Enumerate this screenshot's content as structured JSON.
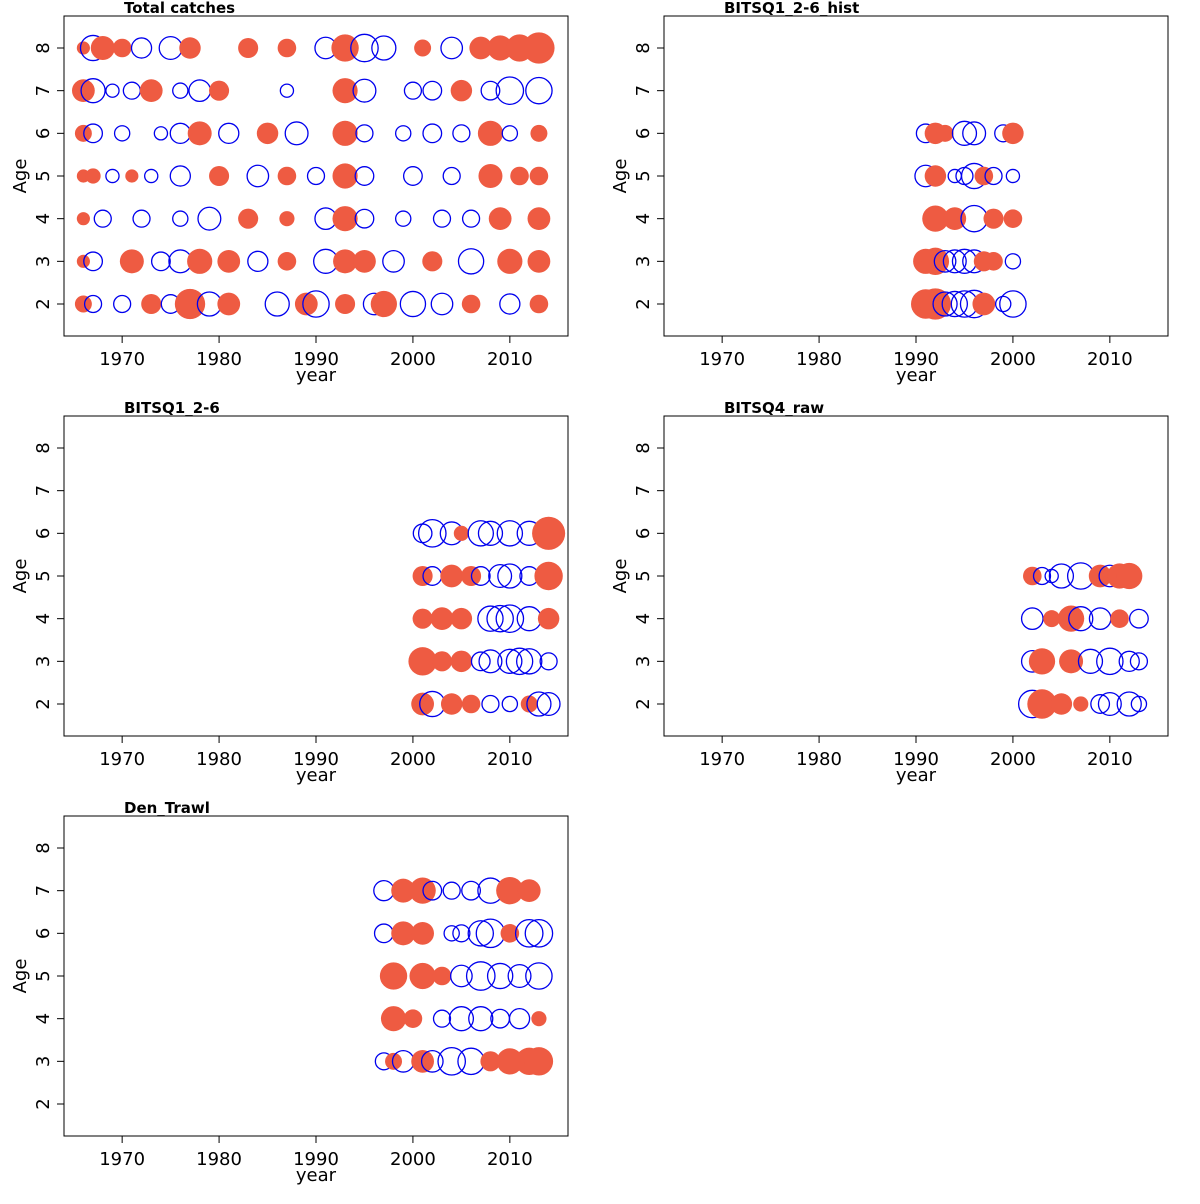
{
  "colors": {
    "positive": "#EE5B42",
    "negative": "#0000EE",
    "axes": "#000000"
  },
  "axes": {
    "xlabel": "year",
    "ylabel": "Age",
    "xticks": [
      1970,
      1980,
      1990,
      2000,
      2010
    ],
    "yticks": [
      2,
      3,
      4,
      5,
      6,
      7,
      8
    ],
    "xlim": [
      1964,
      2016
    ],
    "ylim": [
      1.25,
      8.75
    ]
  },
  "chart_data": [
    {
      "type": "scatter",
      "title": "Total catches",
      "year_range": [
        1966,
        2013
      ],
      "ages": [
        2,
        3,
        4,
        5,
        6,
        7,
        8
      ],
      "points": [
        [
          1966,
          8,
          0.3
        ],
        [
          1967,
          8,
          -1.1
        ],
        [
          1968,
          8,
          1.0
        ],
        [
          1970,
          8,
          0.6
        ],
        [
          1972,
          8,
          -0.7
        ],
        [
          1975,
          8,
          -0.9
        ],
        [
          1977,
          8,
          0.8
        ],
        [
          1983,
          8,
          0.7
        ],
        [
          1987,
          8,
          0.6
        ],
        [
          1991,
          8,
          -0.8
        ],
        [
          1993,
          8,
          1.3
        ],
        [
          1995,
          8,
          -1.3
        ],
        [
          1997,
          8,
          -1.0
        ],
        [
          2001,
          8,
          0.5
        ],
        [
          2004,
          8,
          -0.8
        ],
        [
          2007,
          8,
          0.9
        ],
        [
          2009,
          8,
          1.1
        ],
        [
          2011,
          8,
          1.3
        ],
        [
          2013,
          8,
          1.7
        ],
        [
          1966,
          7,
          0.9
        ],
        [
          1967,
          7,
          -1.0
        ],
        [
          1969,
          7,
          -0.3
        ],
        [
          1971,
          7,
          -0.5
        ],
        [
          1973,
          7,
          0.9
        ],
        [
          1976,
          7,
          -0.4
        ],
        [
          1978,
          7,
          -0.8
        ],
        [
          1980,
          7,
          0.7
        ],
        [
          1987,
          7,
          -0.3
        ],
        [
          1993,
          7,
          1.1
        ],
        [
          1995,
          7,
          -0.9
        ],
        [
          2000,
          7,
          -0.5
        ],
        [
          2002,
          7,
          -0.6
        ],
        [
          2005,
          7,
          0.8
        ],
        [
          2008,
          7,
          -0.6
        ],
        [
          2010,
          7,
          -1.3
        ],
        [
          2013,
          7,
          -1.2
        ],
        [
          1966,
          6,
          0.5
        ],
        [
          1967,
          6,
          -0.6
        ],
        [
          1970,
          6,
          -0.4
        ],
        [
          1974,
          6,
          -0.3
        ],
        [
          1976,
          6,
          -0.7
        ],
        [
          1978,
          6,
          1.0
        ],
        [
          1981,
          6,
          -0.7
        ],
        [
          1985,
          6,
          0.8
        ],
        [
          1988,
          6,
          -0.9
        ],
        [
          1993,
          6,
          1.1
        ],
        [
          1995,
          6,
          -0.5
        ],
        [
          1999,
          6,
          -0.4
        ],
        [
          2002,
          6,
          -0.6
        ],
        [
          2005,
          6,
          -0.5
        ],
        [
          2008,
          6,
          1.1
        ],
        [
          2010,
          6,
          -0.4
        ],
        [
          2013,
          6,
          0.5
        ],
        [
          1966,
          5,
          0.3
        ],
        [
          1967,
          5,
          0.4
        ],
        [
          1969,
          5,
          -0.3
        ],
        [
          1971,
          5,
          0.3
        ],
        [
          1973,
          5,
          -0.3
        ],
        [
          1976,
          5,
          -0.7
        ],
        [
          1980,
          5,
          0.7
        ],
        [
          1984,
          5,
          -0.8
        ],
        [
          1987,
          5,
          0.6
        ],
        [
          1990,
          5,
          -0.5
        ],
        [
          1993,
          5,
          1.1
        ],
        [
          1995,
          5,
          -0.6
        ],
        [
          2000,
          5,
          -0.6
        ],
        [
          2004,
          5,
          -0.5
        ],
        [
          2008,
          5,
          1.0
        ],
        [
          2011,
          5,
          0.6
        ],
        [
          2013,
          5,
          0.6
        ],
        [
          1966,
          4,
          0.3
        ],
        [
          1968,
          4,
          -0.5
        ],
        [
          1972,
          4,
          -0.5
        ],
        [
          1976,
          4,
          -0.4
        ],
        [
          1979,
          4,
          -0.9
        ],
        [
          1983,
          4,
          0.7
        ],
        [
          1987,
          4,
          0.4
        ],
        [
          1991,
          4,
          -0.8
        ],
        [
          1993,
          4,
          1.1
        ],
        [
          1995,
          4,
          -0.6
        ],
        [
          1999,
          4,
          -0.4
        ],
        [
          2003,
          4,
          -0.5
        ],
        [
          2006,
          4,
          -0.5
        ],
        [
          2009,
          4,
          0.9
        ],
        [
          2013,
          4,
          0.9
        ],
        [
          1966,
          3,
          0.3
        ],
        [
          1967,
          3,
          -0.6
        ],
        [
          1971,
          3,
          1.0
        ],
        [
          1974,
          3,
          -0.6
        ],
        [
          1976,
          3,
          -0.9
        ],
        [
          1978,
          3,
          1.1
        ],
        [
          1981,
          3,
          0.9
        ],
        [
          1984,
          3,
          -0.7
        ],
        [
          1987,
          3,
          0.6
        ],
        [
          1991,
          3,
          -1.0
        ],
        [
          1993,
          3,
          1.0
        ],
        [
          1995,
          3,
          0.9
        ],
        [
          1998,
          3,
          -0.8
        ],
        [
          2002,
          3,
          0.7
        ],
        [
          2006,
          3,
          -1.1
        ],
        [
          2010,
          3,
          1.1
        ],
        [
          2013,
          3,
          0.9
        ],
        [
          1966,
          2,
          0.5
        ],
        [
          1967,
          2,
          -0.5
        ],
        [
          1970,
          2,
          -0.5
        ],
        [
          1973,
          2,
          0.7
        ],
        [
          1975,
          2,
          -0.6
        ],
        [
          1977,
          2,
          1.6
        ],
        [
          1979,
          2,
          -1.0
        ],
        [
          1981,
          2,
          0.9
        ],
        [
          1986,
          2,
          -1.0
        ],
        [
          1989,
          2,
          0.9
        ],
        [
          1990,
          2,
          -1.2
        ],
        [
          1993,
          2,
          0.7
        ],
        [
          1996,
          2,
          -0.8
        ],
        [
          1997,
          2,
          1.2
        ],
        [
          2000,
          2,
          -1.1
        ],
        [
          2003,
          2,
          -0.8
        ],
        [
          2006,
          2,
          0.6
        ],
        [
          2010,
          2,
          -0.7
        ],
        [
          2013,
          2,
          0.6
        ]
      ]
    },
    {
      "type": "scatter",
      "title": "BITSQ1_2-6_hist",
      "year_range": [
        1991,
        2000
      ],
      "ages": [
        2,
        3,
        4,
        5,
        6
      ],
      "points": [
        [
          1991,
          6,
          -0.6
        ],
        [
          1992,
          6,
          0.8
        ],
        [
          1993,
          6,
          0.5
        ],
        [
          1995,
          6,
          -1.0
        ],
        [
          1996,
          6,
          -0.9
        ],
        [
          1999,
          6,
          -0.5
        ],
        [
          2000,
          6,
          0.8
        ],
        [
          1991,
          5,
          -0.8
        ],
        [
          1992,
          5,
          0.8
        ],
        [
          1994,
          5,
          -0.3
        ],
        [
          1995,
          5,
          -0.5
        ],
        [
          1996,
          5,
          -1.1
        ],
        [
          1997,
          5,
          0.6
        ],
        [
          1998,
          5,
          -0.5
        ],
        [
          2000,
          5,
          -0.3
        ],
        [
          1992,
          4,
          1.2
        ],
        [
          1994,
          4,
          0.9
        ],
        [
          1996,
          4,
          -1.2
        ],
        [
          1998,
          4,
          0.7
        ],
        [
          2000,
          4,
          0.6
        ],
        [
          1991,
          3,
          1.1
        ],
        [
          1992,
          3,
          1.3
        ],
        [
          1993,
          3,
          -0.8
        ],
        [
          1994,
          3,
          -0.9
        ],
        [
          1995,
          3,
          -1.0
        ],
        [
          1996,
          3,
          -0.9
        ],
        [
          1997,
          3,
          0.7
        ],
        [
          1998,
          3,
          0.6
        ],
        [
          2000,
          3,
          -0.4
        ],
        [
          1991,
          2,
          1.5
        ],
        [
          1992,
          2,
          1.7
        ],
        [
          1993,
          2,
          -1.0
        ],
        [
          1994,
          2,
          -1.1
        ],
        [
          1995,
          2,
          -1.2
        ],
        [
          1996,
          2,
          -1.3
        ],
        [
          1997,
          2,
          0.9
        ],
        [
          1999,
          2,
          -0.4
        ],
        [
          2000,
          2,
          -1.2
        ]
      ]
    },
    {
      "type": "scatter",
      "title": "BITSQ1_2-6",
      "year_range": [
        2001,
        2014
      ],
      "ages": [
        2,
        3,
        4,
        5,
        6
      ],
      "points": [
        [
          2001,
          6,
          -0.6
        ],
        [
          2002,
          6,
          -1.3
        ],
        [
          2004,
          6,
          -0.9
        ],
        [
          2005,
          6,
          0.4
        ],
        [
          2007,
          6,
          -1.1
        ],
        [
          2008,
          6,
          -1.0
        ],
        [
          2010,
          6,
          -1.1
        ],
        [
          2012,
          6,
          -1.0
        ],
        [
          2014,
          6,
          1.9
        ],
        [
          2001,
          5,
          0.7
        ],
        [
          2002,
          5,
          -0.6
        ],
        [
          2004,
          5,
          0.9
        ],
        [
          2006,
          5,
          0.7
        ],
        [
          2007,
          5,
          -0.6
        ],
        [
          2009,
          5,
          -0.9
        ],
        [
          2010,
          5,
          -1.0
        ],
        [
          2012,
          5,
          -0.6
        ],
        [
          2014,
          5,
          1.4
        ],
        [
          2001,
          4,
          0.7
        ],
        [
          2003,
          4,
          0.9
        ],
        [
          2005,
          4,
          0.8
        ],
        [
          2008,
          4,
          -1.1
        ],
        [
          2009,
          4,
          -1.2
        ],
        [
          2010,
          4,
          -1.3
        ],
        [
          2012,
          4,
          -1.0
        ],
        [
          2014,
          4,
          0.8
        ],
        [
          2001,
          3,
          1.4
        ],
        [
          2003,
          3,
          0.7
        ],
        [
          2005,
          3,
          0.8
        ],
        [
          2007,
          3,
          -0.6
        ],
        [
          2008,
          3,
          -0.9
        ],
        [
          2010,
          3,
          -1.0
        ],
        [
          2011,
          3,
          -1.2
        ],
        [
          2012,
          3,
          -1.1
        ],
        [
          2014,
          3,
          -0.5
        ],
        [
          2001,
          2,
          0.9
        ],
        [
          2002,
          2,
          -1.1
        ],
        [
          2004,
          2,
          0.8
        ],
        [
          2006,
          2,
          0.6
        ],
        [
          2008,
          2,
          -0.5
        ],
        [
          2010,
          2,
          -0.4
        ],
        [
          2012,
          2,
          0.5
        ],
        [
          2013,
          2,
          -1.0
        ],
        [
          2014,
          2,
          -0.9
        ]
      ]
    },
    {
      "type": "scatter",
      "title": "BITSQ4_raw",
      "year_range": [
        2002,
        2013
      ],
      "ages": [
        2,
        3,
        4,
        5
      ],
      "points": [
        [
          2002,
          5,
          0.6
        ],
        [
          2003,
          5,
          -0.5
        ],
        [
          2004,
          5,
          -0.3
        ],
        [
          2005,
          5,
          -1.0
        ],
        [
          2007,
          5,
          -1.2
        ],
        [
          2009,
          5,
          0.9
        ],
        [
          2010,
          5,
          -0.8
        ],
        [
          2011,
          5,
          1.1
        ],
        [
          2012,
          5,
          1.2
        ],
        [
          2002,
          4,
          -0.8
        ],
        [
          2004,
          4,
          0.5
        ],
        [
          2006,
          4,
          1.2
        ],
        [
          2007,
          4,
          -1.0
        ],
        [
          2009,
          4,
          -0.8
        ],
        [
          2011,
          4,
          0.6
        ],
        [
          2013,
          4,
          -0.6
        ],
        [
          2002,
          3,
          -0.8
        ],
        [
          2003,
          3,
          1.2
        ],
        [
          2006,
          3,
          1.0
        ],
        [
          2008,
          3,
          -1.0
        ],
        [
          2010,
          3,
          -1.2
        ],
        [
          2012,
          3,
          -0.7
        ],
        [
          2013,
          3,
          -0.5
        ],
        [
          2002,
          2,
          -1.3
        ],
        [
          2003,
          2,
          1.5
        ],
        [
          2005,
          2,
          0.8
        ],
        [
          2007,
          2,
          0.4
        ],
        [
          2009,
          2,
          -0.6
        ],
        [
          2010,
          2,
          -0.9
        ],
        [
          2012,
          2,
          -1.0
        ],
        [
          2013,
          2,
          -0.4
        ]
      ]
    },
    {
      "type": "scatter",
      "title": "Den_Trawl",
      "year_range": [
        1997,
        2013
      ],
      "ages": [
        3,
        4,
        5,
        6,
        7,
        8
      ],
      "points": [
        [
          1997,
          7,
          -0.7
        ],
        [
          1999,
          7,
          1.0
        ],
        [
          2001,
          7,
          1.2
        ],
        [
          2002,
          7,
          -0.6
        ],
        [
          2004,
          7,
          -0.5
        ],
        [
          2006,
          7,
          -0.6
        ],
        [
          2008,
          7,
          -1.1
        ],
        [
          2010,
          7,
          1.3
        ],
        [
          2012,
          7,
          0.9
        ],
        [
          1997,
          6,
          -0.6
        ],
        [
          1999,
          6,
          1.0
        ],
        [
          2001,
          6,
          0.9
        ],
        [
          2004,
          6,
          -0.4
        ],
        [
          2005,
          6,
          -0.5
        ],
        [
          2007,
          6,
          -1.1
        ],
        [
          2008,
          6,
          -1.4
        ],
        [
          2010,
          6,
          0.6
        ],
        [
          2012,
          6,
          -1.3
        ],
        [
          2013,
          6,
          -1.3
        ],
        [
          1998,
          5,
          1.3
        ],
        [
          2001,
          5,
          1.2
        ],
        [
          2003,
          5,
          0.6
        ],
        [
          2005,
          5,
          -0.8
        ],
        [
          2007,
          5,
          -1.4
        ],
        [
          2009,
          5,
          -1.1
        ],
        [
          2011,
          5,
          -0.9
        ],
        [
          2013,
          5,
          -1.2
        ],
        [
          1998,
          4,
          1.1
        ],
        [
          2000,
          4,
          0.6
        ],
        [
          2003,
          4,
          -0.5
        ],
        [
          2005,
          4,
          -1.0
        ],
        [
          2007,
          4,
          -1.0
        ],
        [
          2009,
          4,
          -0.6
        ],
        [
          2011,
          4,
          -0.7
        ],
        [
          2013,
          4,
          0.4
        ],
        [
          1997,
          3,
          -0.5
        ],
        [
          1998,
          3,
          0.5
        ],
        [
          1999,
          3,
          -0.8
        ],
        [
          2001,
          3,
          0.9
        ],
        [
          2002,
          3,
          -0.8
        ],
        [
          2004,
          3,
          -1.3
        ],
        [
          2006,
          3,
          -1.2
        ],
        [
          2008,
          3,
          0.7
        ],
        [
          2010,
          3,
          1.2
        ],
        [
          2012,
          3,
          1.3
        ],
        [
          2013,
          3,
          1.4
        ]
      ]
    }
  ]
}
